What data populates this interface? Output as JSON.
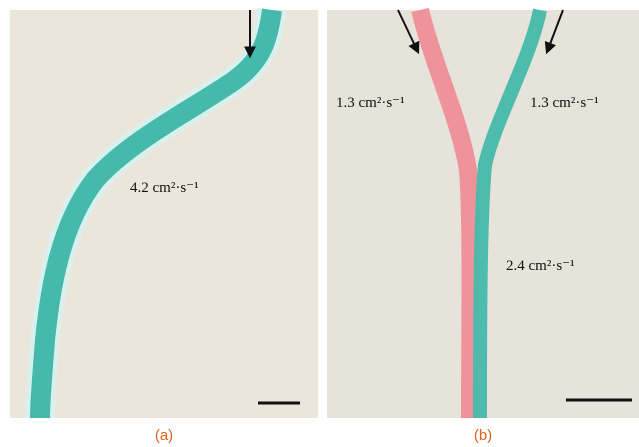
{
  "panels": [
    {
      "caption": "(a)",
      "labels": [
        "4.2 cm²·s⁻¹"
      ]
    },
    {
      "caption": "(b)",
      "labels": [
        "1.3 cm²·s⁻¹",
        "1.3 cm²·s⁻¹",
        "2.4 cm²·s⁻¹"
      ]
    }
  ]
}
